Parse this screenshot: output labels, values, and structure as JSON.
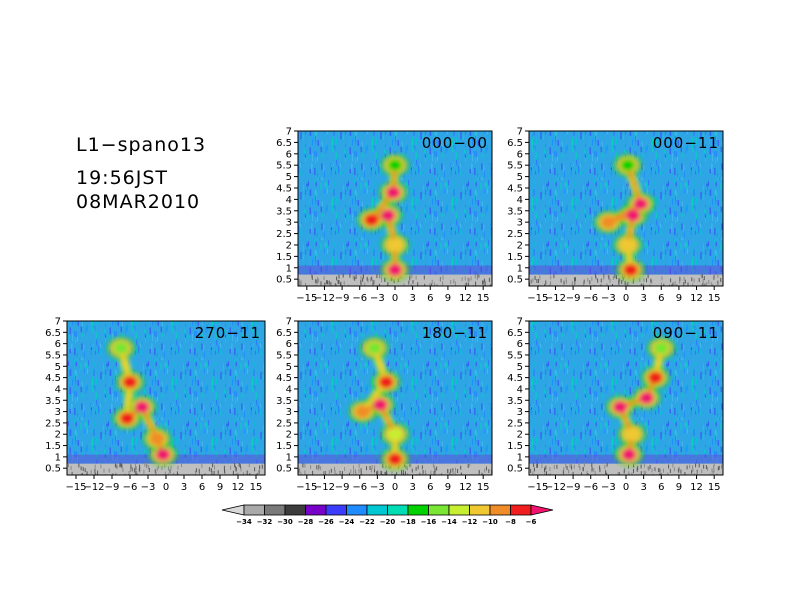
{
  "header": {
    "title": "L1−spano13",
    "time": "19:56JST",
    "date": "08MAR2010"
  },
  "chart_data": {
    "type": "heatmap",
    "x_ticks": [
      "−15",
      "−12",
      "−9",
      "−6",
      "−3",
      "0",
      "3",
      "6",
      "9",
      "12",
      "15"
    ],
    "x_tick_values": [
      -15,
      -12,
      -9,
      -6,
      -3,
      0,
      3,
      6,
      9,
      12,
      15
    ],
    "xlim": [
      -16.5,
      16.5
    ],
    "y_ticks": [
      "0.5",
      "1",
      "1.5",
      "2",
      "2.5",
      "3",
      "3.5",
      "4",
      "4.5",
      "5",
      "5.5",
      "6",
      "6.5",
      "7"
    ],
    "y_tick_values": [
      0.5,
      1,
      1.5,
      2,
      2.5,
      3,
      3.5,
      4,
      4.5,
      5,
      5.5,
      6,
      6.5,
      7
    ],
    "ylim": [
      0.2,
      7
    ],
    "panels": [
      {
        "label": "000−00",
        "features": [
          {
            "x": 0,
            "y": 0.9,
            "value": -6
          },
          {
            "x": 0,
            "y": 2.0,
            "value": -11
          },
          {
            "x": -1.2,
            "y": 3.3,
            "value": -6
          },
          {
            "x": -4,
            "y": 3.1,
            "value": -8
          },
          {
            "x": -0.3,
            "y": 4.3,
            "value": -6
          },
          {
            "x": 0,
            "y": 5.5,
            "value": -17
          }
        ]
      },
      {
        "label": "000−11",
        "features": [
          {
            "x": 0.8,
            "y": 0.9,
            "value": -7
          },
          {
            "x": 0.3,
            "y": 2.0,
            "value": -12
          },
          {
            "x": 1.2,
            "y": 3.3,
            "value": -6
          },
          {
            "x": -3,
            "y": 3.0,
            "value": -10
          },
          {
            "x": 2.5,
            "y": 3.8,
            "value": -6
          },
          {
            "x": 0.3,
            "y": 5.5,
            "value": -17
          }
        ]
      },
      {
        "label": "270−11",
        "features": [
          {
            "x": -0.5,
            "y": 1.1,
            "value": -6
          },
          {
            "x": -1.5,
            "y": 1.8,
            "value": -10
          },
          {
            "x": -4,
            "y": 3.2,
            "value": -6
          },
          {
            "x": -6.5,
            "y": 2.7,
            "value": -7
          },
          {
            "x": -6,
            "y": 4.3,
            "value": -7
          },
          {
            "x": -7.5,
            "y": 5.8,
            "value": -15
          }
        ]
      },
      {
        "label": "180−11",
        "features": [
          {
            "x": 0,
            "y": 0.9,
            "value": -8
          },
          {
            "x": 0,
            "y": 2.0,
            "value": -13
          },
          {
            "x": -2.5,
            "y": 3.3,
            "value": -6
          },
          {
            "x": -5.5,
            "y": 3.0,
            "value": -10
          },
          {
            "x": -1.5,
            "y": 4.3,
            "value": -7
          },
          {
            "x": -3.5,
            "y": 5.8,
            "value": -15
          }
        ]
      },
      {
        "label": "090−11",
        "features": [
          {
            "x": 0.5,
            "y": 1.1,
            "value": -6
          },
          {
            "x": 1,
            "y": 2.0,
            "value": -11
          },
          {
            "x": -1,
            "y": 3.2,
            "value": -6
          },
          {
            "x": 3.5,
            "y": 3.6,
            "value": -6
          },
          {
            "x": 5,
            "y": 4.5,
            "value": -7
          },
          {
            "x": 6,
            "y": 5.8,
            "value": -15
          }
        ]
      }
    ],
    "colorbar": {
      "labels": [
        "−34",
        "−32",
        "−30",
        "−28",
        "−26",
        "−24",
        "−22",
        "−20",
        "−18",
        "−16",
        "−14",
        "−12",
        "−10",
        "−8",
        "−6"
      ],
      "colors": [
        "#d8d8d8",
        "#a9a9a9",
        "#7a7a7a",
        "#3c3c3c",
        "#7800c8",
        "#3c3cff",
        "#1e8cff",
        "#00c8d2",
        "#00dcb4",
        "#00d200",
        "#78e632",
        "#c8ee32",
        "#f0c832",
        "#f08c28",
        "#f01e1e",
        "#f0146e"
      ],
      "extend": "both"
    }
  }
}
